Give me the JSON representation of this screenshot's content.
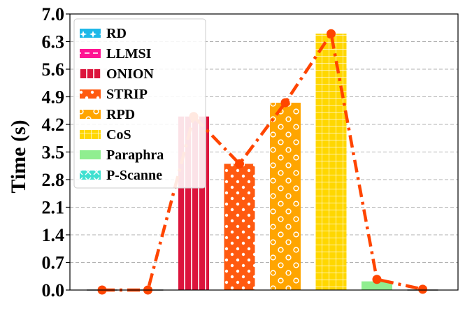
{
  "chart_data": {
    "type": "bar",
    "ylabel": "Time (s)",
    "xlabel": "",
    "ylim": [
      0.0,
      7.0
    ],
    "yticks": [
      "0.0",
      "0.7",
      "1.4",
      "2.1",
      "2.8",
      "3.5",
      "4.2",
      "4.9",
      "5.6",
      "6.3",
      "7.0"
    ],
    "grid": "horizontal-dashed",
    "legend_position": "top-left",
    "categories": [
      "RD",
      "LLMSI",
      "ONION",
      "STRIP",
      "RPD",
      "CoS",
      "Paraphra",
      "P-Scanne"
    ],
    "series": [
      {
        "type": "bar",
        "values": [
          0.0,
          0.0,
          4.4,
          3.2,
          4.75,
          6.5,
          0.22,
          0.0
        ],
        "colors": [
          "#1fb8e8",
          "#ff1493",
          "#dc143c",
          "#ff5a10",
          "#ffa500",
          "#ffd700",
          "#90ee90",
          "#40e0d0"
        ],
        "hatches": [
          "star",
          "dash",
          "vline",
          "dot",
          "circle",
          "grid",
          "none",
          "x"
        ]
      },
      {
        "type": "line",
        "style": "dash-dot",
        "marker": "circle",
        "color": "#ff4500",
        "values": [
          0.0,
          0.0,
          4.4,
          3.2,
          4.75,
          6.5,
          0.27,
          0.02
        ]
      }
    ],
    "legend": [
      "RD",
      "LLMSI",
      "ONION",
      "STRIP",
      "RPD",
      "CoS",
      "Paraphra",
      "P-Scanne"
    ]
  }
}
